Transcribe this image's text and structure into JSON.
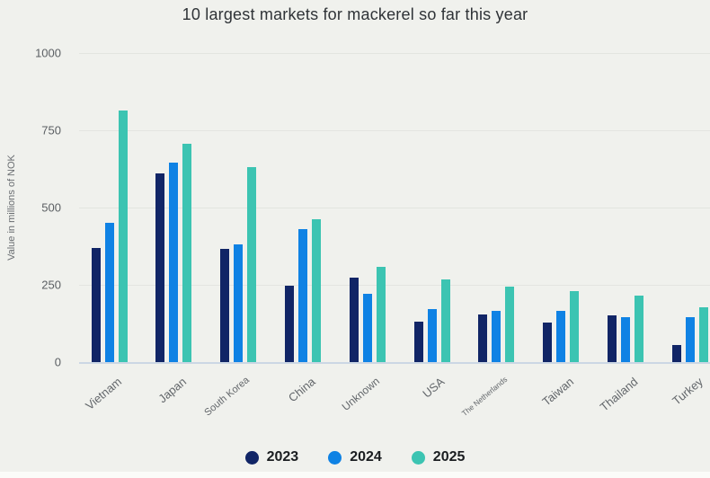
{
  "chart_data": {
    "type": "bar",
    "title": "10 largest markets for mackerel so far this year",
    "ylabel": "Value in millions of NOK",
    "xlabel": "",
    "ylim": [
      0,
      1000
    ],
    "yticks": [
      0,
      250,
      500,
      750,
      1000
    ],
    "grid": true,
    "legend_position": "bottom",
    "categories": [
      "Vietnam",
      "Japan",
      "South Korea",
      "China",
      "Unknown",
      "USA",
      "The Netherlands",
      "Taiwan",
      "Thailand",
      "Turkey"
    ],
    "series": [
      {
        "name": "2023",
        "color": "#112566",
        "values": [
          370,
          610,
          365,
          248,
          272,
          132,
          155,
          127,
          152,
          55
        ]
      },
      {
        "name": "2024",
        "color": "#0f82e4",
        "values": [
          452,
          645,
          380,
          430,
          220,
          173,
          166,
          167,
          145,
          144
        ]
      },
      {
        "name": "2025",
        "color": "#3cc4b2",
        "values": [
          815,
          705,
          632,
          462,
          308,
          268,
          245,
          229,
          216,
          178
        ]
      }
    ]
  },
  "colors": {
    "background": "#f0f1ed",
    "gridline": "#e3e5e0",
    "axis_line": "#ccd7e4",
    "title_text": "#2f3337",
    "tick_text": "#5b5f63",
    "category_text": "#63676b",
    "legend_text": "#1a1d20"
  }
}
